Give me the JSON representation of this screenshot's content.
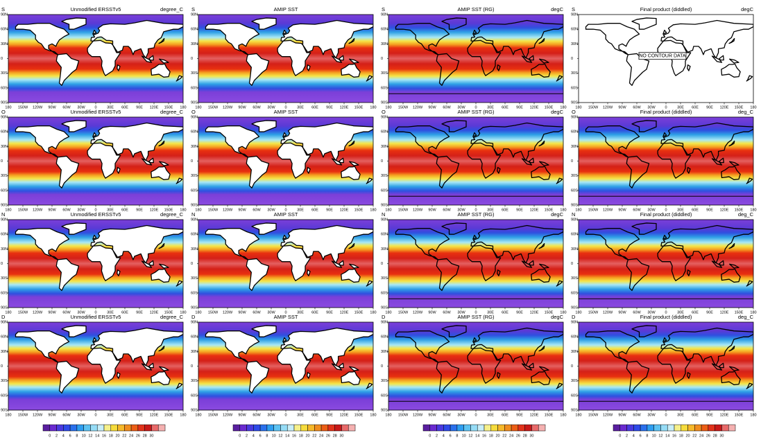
{
  "panels": [
    [
      {
        "month": "S",
        "title": "Unmodified ERSSTv5",
        "units": "degree_C"
      },
      {
        "month": "S",
        "title": "AMIP SST"
      },
      {
        "month": "S",
        "title": "AMIP SST (RG)",
        "units": "degC"
      },
      {
        "month": "S",
        "title": "Final product (diddled)",
        "units": "degC"
      }
    ],
    [
      {
        "month": "O",
        "title": "Unmodified ERSSTv5",
        "units": "degree_C"
      },
      {
        "month": "O",
        "title": "AMIP SST"
      },
      {
        "month": "O",
        "title": "AMIP SST (RG)",
        "units": "degC"
      },
      {
        "month": "O",
        "title": "Final product (diddled)",
        "units": "deg_C"
      }
    ],
    [
      {
        "month": "N",
        "title": "Unmodified ERSSTv5",
        "units": "degree_C"
      },
      {
        "month": "N",
        "title": "AMIP SST"
      },
      {
        "month": "N",
        "title": "AMIP SST (RG)",
        "units": "degC"
      },
      {
        "month": "N",
        "title": "Final product (diddled)",
        "units": "deg_C"
      }
    ],
    [
      {
        "month": "D",
        "title": "Unmodified ERSSTv5",
        "units": "degree_C"
      },
      {
        "month": "D",
        "title": "AMIP SST"
      },
      {
        "month": "D",
        "title": "AMIP SST (RG)",
        "units": "degC"
      },
      {
        "month": "D",
        "title": "Final product (diddled)",
        "units": "deg_C"
      }
    ]
  ],
  "no_data_text": "NO CONTOUR DATA",
  "lat_labels": [
    "90N",
    "60N",
    "30N",
    "0",
    "30S",
    "60S",
    "90S"
  ],
  "lon_labels": [
    "180",
    "150W",
    "120W",
    "90W",
    "60W",
    "30W",
    "0",
    "30E",
    "60E",
    "90E",
    "120E",
    "150E",
    "180"
  ],
  "colorbar_labels": [
    0,
    2,
    4,
    6,
    8,
    10,
    12,
    14,
    16,
    18,
    20,
    22,
    24,
    26,
    28,
    30
  ]
}
